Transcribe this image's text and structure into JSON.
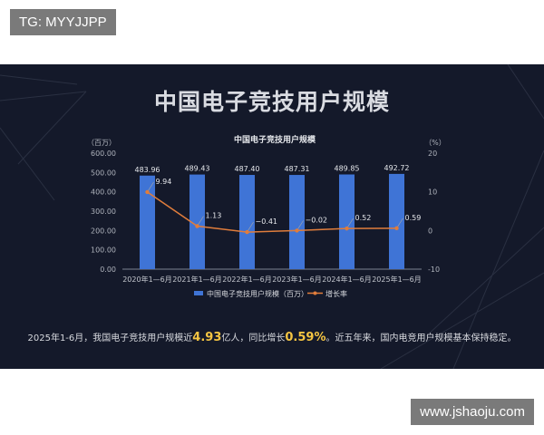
{
  "watermarks": {
    "top": "TG: MYYJJPP",
    "bottom": "www.jshaoju.com"
  },
  "header": {
    "title": "中国电子竞技用户规模"
  },
  "chart_data": {
    "type": "bar",
    "title": "中国电子竞技用户规模",
    "categories": [
      "2020年1—6月",
      "2021年1—6月",
      "2022年1—6月",
      "2023年1—6月",
      "2024年1—6月",
      "2025年1—6月"
    ],
    "series": [
      {
        "name": "中国电子竞技用户规模（百万）",
        "type": "bar",
        "axis": "left",
        "values": [
          483.96,
          489.43,
          487.4,
          487.31,
          489.85,
          492.72
        ],
        "labels": [
          "483.96",
          "489.43",
          "487.40",
          "487.31",
          "489.85",
          "492.72"
        ],
        "color": "#3f74d6"
      },
      {
        "name": "增长率",
        "type": "line",
        "axis": "right",
        "values": [
          9.94,
          1.13,
          -0.41,
          -0.02,
          0.52,
          0.59
        ],
        "labels": [
          "9.94",
          "1.13",
          "−0.41",
          "−0.02",
          "0.52",
          "0.59"
        ],
        "color": "#e07d3c"
      }
    ],
    "y_left": {
      "unit": "（百万）",
      "ylim": [
        0,
        600
      ],
      "ticks": [
        0,
        100,
        200,
        300,
        400,
        500,
        600
      ],
      "tick_labels": [
        "0.00",
        "100.00",
        "200.00",
        "300.00",
        "400.00",
        "500.00",
        "600.00"
      ]
    },
    "y_right": {
      "unit": "（%）",
      "ylim": [
        -10,
        20
      ],
      "ticks": [
        -10,
        0,
        10,
        20
      ],
      "tick_labels": [
        "-10",
        "0",
        "10",
        "20"
      ]
    },
    "grid": false,
    "legend": "bottom"
  },
  "caption": {
    "part1": "2025年1-6月，我国电子竞技用户规模近",
    "highlight1": "4.93",
    "part2": "亿人，同比增长",
    "highlight2": "0.59%",
    "part3": "。近五年来，国内电竞用户规模基本保持稳定。"
  },
  "colors": {
    "background": "#14192a",
    "bar": "#3f74d6",
    "line": "#e07d3c",
    "highlight": "#f5c542"
  }
}
